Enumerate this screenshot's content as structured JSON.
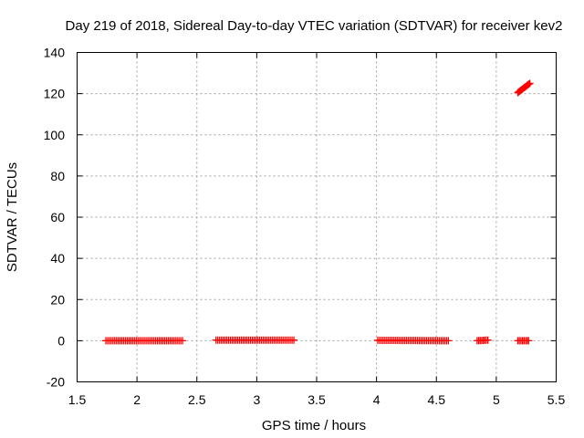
{
  "chart_data": {
    "type": "scatter",
    "title": "Day 219 of 2018, Sidereal Day-to-day VTEC variation (SDTVAR) for receiver kev2",
    "xlabel": "GPS time / hours",
    "ylabel": "SDTVAR / TECUs",
    "xlim": [
      1.5,
      5.5
    ],
    "ylim": [
      -20,
      140
    ],
    "xticks": [
      "1.5",
      "2",
      "2.5",
      "3",
      "3.5",
      "4",
      "4.5",
      "5",
      "5.5"
    ],
    "yticks": [
      "-20",
      "0",
      "20",
      "40",
      "60",
      "80",
      "100",
      "120",
      "140"
    ],
    "grid": true,
    "marker": "plus",
    "color": "#ff0000",
    "segments": [
      {
        "x_start": 1.74,
        "x_end": 2.38,
        "y_start": 0.0,
        "y_end": 0.0,
        "step": 0.015
      },
      {
        "x_start": 2.66,
        "x_end": 3.31,
        "y_start": 0.3,
        "y_end": 0.3,
        "step": 0.015
      },
      {
        "x_start": 4.01,
        "x_end": 4.6,
        "y_start": 0.2,
        "y_end": 0.0,
        "step": 0.015
      },
      {
        "x_start": 4.84,
        "x_end": 4.93,
        "y_start": 0.0,
        "y_end": 0.3,
        "step": 0.012
      },
      {
        "x_start": 5.18,
        "x_end": 5.27,
        "y_start": 0.0,
        "y_end": 0.0,
        "step": 0.012
      },
      {
        "x_start": 5.18,
        "x_end": 5.28,
        "y_start": 120.5,
        "y_end": 125.0,
        "step": 0.008
      }
    ]
  }
}
